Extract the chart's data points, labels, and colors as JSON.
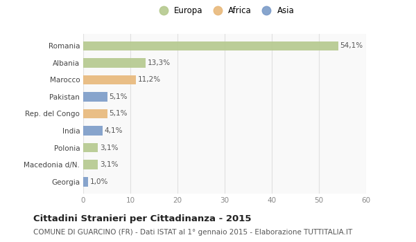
{
  "countries": [
    "Romania",
    "Albania",
    "Marocco",
    "Pakistan",
    "Rep. del Congo",
    "India",
    "Polonia",
    "Macedonia d/N.",
    "Georgia"
  ],
  "values": [
    54.1,
    13.3,
    11.2,
    5.1,
    5.1,
    4.1,
    3.1,
    3.1,
    1.0
  ],
  "labels": [
    "54,1%",
    "13,3%",
    "11,2%",
    "5,1%",
    "5,1%",
    "4,1%",
    "3,1%",
    "3,1%",
    "1,0%"
  ],
  "continents": [
    "Europa",
    "Europa",
    "Africa",
    "Asia",
    "Africa",
    "Asia",
    "Europa",
    "Europa",
    "Asia"
  ],
  "colors": {
    "Europa": "#b5c98e",
    "Africa": "#e8b87a",
    "Asia": "#7b9bc8"
  },
  "xlim": [
    0,
    60
  ],
  "xticks": [
    0,
    10,
    20,
    30,
    40,
    50,
    60
  ],
  "title_main": "Cittadini Stranieri per Cittadinanza - 2015",
  "title_sub": "COMUNE DI GUARCINO (FR) - Dati ISTAT al 1° gennaio 2015 - Elaborazione TUTTITALIA.IT",
  "background_color": "#ffffff",
  "plot_bg_color": "#f9f9f9",
  "grid_color": "#e0e0e0",
  "bar_height": 0.55,
  "label_fontsize": 7.5,
  "tick_fontsize": 7.5,
  "title_fontsize": 9.5,
  "subtitle_fontsize": 7.5,
  "legend_fontsize": 8.5
}
